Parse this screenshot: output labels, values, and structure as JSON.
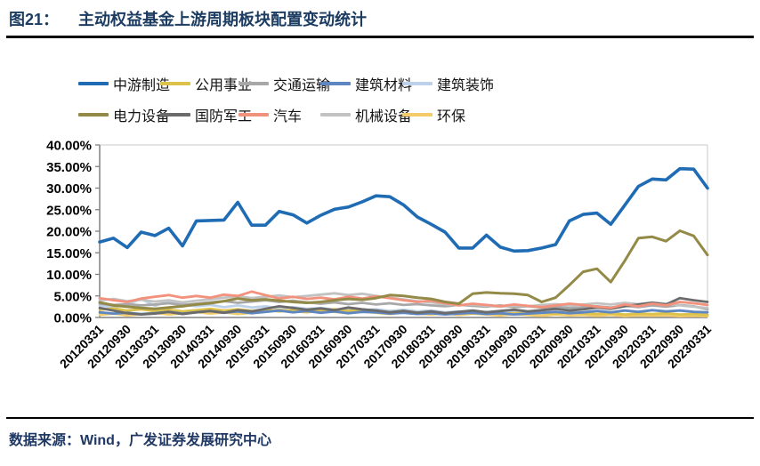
{
  "title": {
    "prefix": "图21：",
    "text": "主动权益基金上游周期板块配置变动统计"
  },
  "source": {
    "text": "数据来源：Wind，广发证券发展研究中心"
  },
  "chart_data": {
    "type": "line",
    "title": "主动权益基金上游周期板块配置变动统计",
    "xlabel": "",
    "ylabel": "",
    "ylim": [
      0,
      40
    ],
    "ytick_step": 5,
    "ytick_labels": [
      "40.00%",
      "35.00%",
      "30.00%",
      "25.00%",
      "20.00%",
      "15.00%",
      "10.00%",
      "5.00%",
      "0.00%"
    ],
    "grid": false,
    "legend_position": "top",
    "x": [
      "20120331",
      "20120630",
      "20120930",
      "20121231",
      "20130331",
      "20130630",
      "20130930",
      "20131231",
      "20140331",
      "20140630",
      "20140930",
      "20141231",
      "20150331",
      "20150630",
      "20150930",
      "20151231",
      "20160331",
      "20160630",
      "20160930",
      "20161231",
      "20170331",
      "20170630",
      "20170930",
      "20171231",
      "20180331",
      "20180630",
      "20180930",
      "20181231",
      "20190331",
      "20190630",
      "20190930",
      "20191231",
      "20200331",
      "20200630",
      "20200930",
      "20201231",
      "20210331",
      "20210630",
      "20210930",
      "20211231",
      "20220331",
      "20220630",
      "20220930",
      "20221231",
      "20230331"
    ],
    "x_tick_labels": [
      "20120331",
      "20120930",
      "20130331",
      "20130930",
      "20140331",
      "20140930",
      "20150331",
      "20150930",
      "20160331",
      "20160930",
      "20170331",
      "20170930",
      "20180331",
      "20180930",
      "20190331",
      "20190930",
      "20200331",
      "20200930",
      "20210331",
      "20210930",
      "20220331",
      "20220930",
      "20230331"
    ],
    "series": [
      {
        "name": "中游制造",
        "color": "#1f6cb4",
        "line_width": 3.6,
        "values": [
          17.5,
          18.4,
          16.2,
          19.8,
          19.0,
          20.7,
          16.6,
          22.4,
          22.5,
          22.6,
          26.7,
          21.4,
          21.4,
          24.6,
          23.8,
          21.9,
          23.7,
          25.1,
          25.6,
          26.8,
          28.2,
          28.0,
          26.1,
          23.3,
          21.6,
          19.8,
          16.1,
          16.1,
          19.1,
          16.3,
          15.4,
          15.5,
          16.1,
          16.9,
          22.4,
          23.9,
          24.2,
          21.6,
          26.0,
          30.4,
          32.1,
          31.9,
          34.5,
          34.4,
          30.0
        ]
      },
      {
        "name": "公用事业",
        "color": "#dcc14b",
        "line_width": 2.8,
        "values": [
          1.8,
          2.1,
          1.6,
          1.9,
          1.5,
          1.8,
          1.4,
          1.7,
          2.0,
          1.6,
          1.9,
          1.5,
          1.8,
          1.4,
          1.7,
          1.3,
          1.6,
          1.9,
          1.5,
          1.8,
          1.4,
          1.2,
          1.5,
          1.1,
          1.3,
          1.0,
          1.2,
          0.9,
          1.1,
          0.8,
          1.0,
          0.9,
          1.1,
          0.9,
          1.2,
          1.0,
          0.8,
          1.0,
          0.7,
          0.9,
          0.8,
          1.0,
          0.7,
          0.8,
          0.6
        ]
      },
      {
        "name": "交通运输",
        "color": "#a8a8a8",
        "line_width": 2.8,
        "values": [
          3.2,
          2.9,
          3.1,
          2.8,
          3.0,
          3.3,
          2.9,
          3.2,
          3.5,
          3.8,
          3.4,
          3.7,
          4.0,
          3.6,
          3.9,
          3.5,
          3.2,
          3.5,
          3.1,
          3.4,
          3.0,
          3.3,
          2.9,
          3.1,
          2.8,
          2.6,
          2.9,
          2.7,
          2.5,
          2.8,
          2.4,
          2.6,
          2.3,
          2.5,
          2.2,
          2.4,
          2.6,
          2.3,
          2.7,
          2.4,
          2.8,
          2.5,
          2.9,
          2.6,
          1.9
        ]
      },
      {
        "name": "建筑材料",
        "color": "#5e86c1",
        "line_width": 2.8,
        "values": [
          1.2,
          0.9,
          1.1,
          0.8,
          1.0,
          1.3,
          0.9,
          1.2,
          1.5,
          1.1,
          1.4,
          1.0,
          1.3,
          1.6,
          1.2,
          1.5,
          1.1,
          1.4,
          1.0,
          1.3,
          1.2,
          0.9,
          1.1,
          0.8,
          1.0,
          0.7,
          0.9,
          1.1,
          0.8,
          1.0,
          0.7,
          0.9,
          1.1,
          1.3,
          1.0,
          1.2,
          1.5,
          1.2,
          1.6,
          1.3,
          1.7,
          1.4,
          1.6,
          1.3,
          1.2
        ]
      },
      {
        "name": "建筑装饰",
        "color": "#bdd2ea",
        "line_width": 2.8,
        "values": [
          2.8,
          2.4,
          3.0,
          4.3,
          2.7,
          3.9,
          3.1,
          2.6,
          2.9,
          2.4,
          2.8,
          2.3,
          2.6,
          2.1,
          2.4,
          2.0,
          2.2,
          1.8,
          2.1,
          1.7,
          1.9,
          1.5,
          1.8,
          1.4,
          1.6,
          1.2,
          1.4,
          1.1,
          1.3,
          1.0,
          1.2,
          0.9,
          1.0,
          0.8,
          1.1,
          0.9,
          0.7,
          0.9,
          0.6,
          0.8,
          0.7,
          0.9,
          0.6,
          0.7,
          0.5
        ]
      },
      {
        "name": "电力设备",
        "color": "#938a48",
        "line_width": 3.0,
        "values": [
          3.5,
          2.8,
          2.5,
          2.2,
          2.0,
          2.3,
          2.6,
          3.0,
          3.3,
          3.8,
          4.4,
          4.0,
          4.2,
          3.9,
          3.6,
          3.4,
          3.6,
          4.0,
          4.3,
          4.1,
          4.5,
          5.2,
          5.0,
          4.6,
          4.3,
          3.6,
          3.2,
          5.5,
          5.8,
          5.6,
          5.5,
          5.2,
          3.6,
          4.6,
          7.5,
          10.6,
          11.3,
          8.2,
          13.1,
          18.4,
          18.7,
          17.7,
          20.1,
          18.9,
          14.5
        ]
      },
      {
        "name": "国防军工",
        "color": "#6b6b6b",
        "line_width": 2.8,
        "values": [
          2.2,
          1.6,
          1.0,
          0.7,
          0.9,
          1.3,
          0.8,
          1.2,
          1.5,
          1.1,
          1.7,
          1.4,
          2.0,
          2.6,
          2.2,
          1.8,
          2.1,
          1.7,
          2.3,
          1.9,
          1.6,
          1.2,
          1.5,
          1.1,
          1.4,
          1.0,
          1.3,
          1.6,
          1.2,
          1.5,
          1.8,
          1.4,
          1.7,
          2.0,
          1.6,
          1.9,
          2.3,
          2.0,
          2.6,
          3.0,
          3.4,
          3.0,
          4.5,
          4.0,
          3.6
        ]
      },
      {
        "name": "汽车",
        "color": "#f2917c",
        "line_width": 2.8,
        "values": [
          4.5,
          4.0,
          3.6,
          4.4,
          4.8,
          5.2,
          4.6,
          5.0,
          4.6,
          5.3,
          5.0,
          6.0,
          5.2,
          4.4,
          4.8,
          4.3,
          4.6,
          4.2,
          4.8,
          4.4,
          4.9,
          4.5,
          4.0,
          3.6,
          3.9,
          3.3,
          2.8,
          3.2,
          2.9,
          2.6,
          3.0,
          2.7,
          2.4,
          2.8,
          3.2,
          2.9,
          2.5,
          2.2,
          3.0,
          2.6,
          3.2,
          2.8,
          3.6,
          3.3,
          2.9
        ]
      },
      {
        "name": "机械设备",
        "color": "#c2c2c2",
        "line_width": 2.8,
        "values": [
          4.0,
          4.3,
          3.8,
          4.1,
          3.7,
          4.0,
          3.5,
          3.9,
          4.2,
          4.6,
          4.9,
          4.5,
          4.8,
          5.1,
          4.7,
          5.0,
          5.3,
          5.6,
          5.2,
          5.5,
          5.0,
          4.6,
          4.2,
          3.8,
          3.5,
          3.1,
          2.8,
          3.0,
          2.7,
          2.5,
          2.8,
          2.6,
          2.9,
          3.1,
          2.8,
          3.0,
          3.3,
          3.0,
          3.4,
          3.1,
          3.5,
          3.2,
          2.8,
          2.5,
          2.2
        ]
      },
      {
        "name": "环保",
        "color": "#f3cb69",
        "line_width": 2.8,
        "values": [
          0.6,
          0.9,
          0.5,
          0.8,
          1.1,
          0.7,
          1.0,
          1.3,
          0.9,
          1.2,
          0.8,
          1.1,
          1.4,
          1.8,
          1.5,
          1.2,
          1.6,
          1.3,
          1.0,
          1.4,
          1.1,
          0.8,
          1.2,
          0.9,
          0.7,
          1.0,
          0.6,
          0.9,
          0.7,
          0.5,
          0.8,
          0.6,
          0.4,
          0.7,
          0.5,
          0.6,
          0.4,
          0.6,
          0.3,
          0.5,
          0.4,
          0.5,
          0.3,
          0.4,
          0.3
        ]
      }
    ]
  }
}
